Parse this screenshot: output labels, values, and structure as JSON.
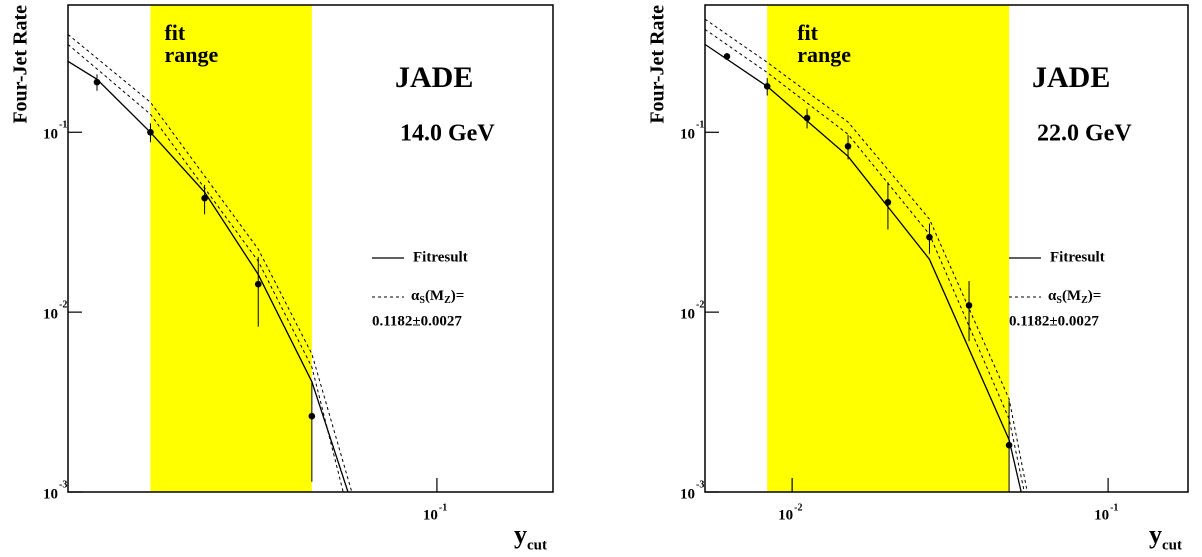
{
  "chart_data": [
    {
      "type": "line",
      "title": "JADE",
      "subtitle": "14.0 GeV",
      "ylabel": "Four-Jet Rate",
      "xlabel": "y",
      "xlabel_sub": "cut",
      "xscale": "log",
      "yscale": "log",
      "xlim": [
        0.0068,
        0.233
      ],
      "ylim": [
        0.001,
        0.51
      ],
      "xticks": [
        {
          "value": 0.1,
          "label": "10",
          "exponent": "-1"
        }
      ],
      "yticks": [
        {
          "value": 0.001,
          "label": "10",
          "exponent": "-3"
        },
        {
          "value": 0.01,
          "label": "10",
          "exponent": "-2"
        },
        {
          "value": 0.1,
          "label": "10",
          "exponent": "-1"
        }
      ],
      "fit_range": [
        0.0124,
        0.0402
      ],
      "fit_range_label": [
        "fit",
        "range"
      ],
      "fit_range_color": "#ffff00",
      "data": {
        "x": [
          0.0084,
          0.0124,
          0.0184,
          0.0272,
          0.0402
        ],
        "values": [
          0.19,
          0.1,
          0.043,
          0.0143,
          0.00264
        ],
        "errors": [
          0.02,
          0.012,
          0.008,
          0.006,
          0.0015
        ],
        "color": "#000000"
      },
      "series": [
        {
          "name": "Fitresult",
          "color": "#000000",
          "dash": "solid",
          "x": [
            0.0068,
            0.0084,
            0.0124,
            0.0184,
            0.0272,
            0.0402,
            0.0523
          ],
          "values": [
            0.248,
            0.197,
            0.1,
            0.0464,
            0.0162,
            0.0041,
            0.001
          ]
        },
        {
          "name_parts": [
            "α",
            "S",
            "(M",
            "Z",
            ")="
          ],
          "label": "0.1182±0.0027",
          "color": "#000000",
          "dash": "dashed",
          "x": [
            0.0068,
            0.0124,
            0.0272,
            0.0402,
            0.0538
          ],
          "values": [
            0.35,
            0.147,
            0.0224,
            0.00585,
            0.001
          ]
        },
        {
          "color": "#000000",
          "dash": "dashed",
          "x": [
            0.0068,
            0.0124,
            0.0272,
            0.0402,
            0.0505
          ],
          "values": [
            0.308,
            0.126,
            0.0192,
            0.00494,
            0.001
          ]
        }
      ]
    },
    {
      "type": "line",
      "title": "JADE",
      "subtitle": "22.0 GeV",
      "ylabel": "Four-Jet Rate",
      "xlabel": "y",
      "xlabel_sub": "cut",
      "xscale": "log",
      "yscale": "log",
      "xlim": [
        0.0053,
        0.179
      ],
      "ylim": [
        0.001,
        0.51
      ],
      "xticks": [
        {
          "value": 0.01,
          "label": "10",
          "exponent": "-2"
        },
        {
          "value": 0.1,
          "label": "10",
          "exponent": "-1"
        }
      ],
      "yticks": [
        {
          "value": 0.001,
          "label": "10",
          "exponent": "-3"
        },
        {
          "value": 0.01,
          "label": "10",
          "exponent": "-2"
        },
        {
          "value": 0.1,
          "label": "10",
          "exponent": "-1"
        }
      ],
      "fit_range": [
        0.00834,
        0.0486
      ],
      "fit_range_label": [
        "fit",
        "range"
      ],
      "fit_range_color": "#ffff00",
      "data": {
        "x": [
          0.00622,
          0.00834,
          0.01115,
          0.01503,
          0.0201,
          0.0272,
          0.0363,
          0.0486
        ],
        "values": [
          0.264,
          0.18,
          0.12,
          0.0836,
          0.0408,
          0.0261,
          0.0109,
          0.00182
        ],
        "errors": [
          0.012,
          0.02,
          0.015,
          0.013,
          0.012,
          0.005,
          0.004,
          0.0014
        ],
        "color": "#000000"
      },
      "series": [
        {
          "name": "Fitresult",
          "color": "#000000",
          "dash": "solid",
          "x": [
            0.0053,
            0.00834,
            0.01503,
            0.0272,
            0.0486,
            0.0531
          ],
          "values": [
            0.308,
            0.18,
            0.0735,
            0.0197,
            0.00195,
            0.001
          ]
        },
        {
          "name_parts": [
            "α",
            "S",
            "(M",
            "Z",
            ")="
          ],
          "label": "0.1182±0.0027",
          "color": "#000000",
          "dash": "dashed",
          "x": [
            0.0053,
            0.00834,
            0.01503,
            0.0272,
            0.0486,
            0.0555
          ],
          "values": [
            0.425,
            0.245,
            0.114,
            0.0329,
            0.00329,
            0.001
          ]
        },
        {
          "color": "#000000",
          "dash": "dashed",
          "x": [
            0.0053,
            0.00834,
            0.01503,
            0.0272,
            0.0486,
            0.0543
          ],
          "values": [
            0.373,
            0.215,
            0.0975,
            0.0271,
            0.00255,
            0.001
          ]
        }
      ]
    }
  ]
}
